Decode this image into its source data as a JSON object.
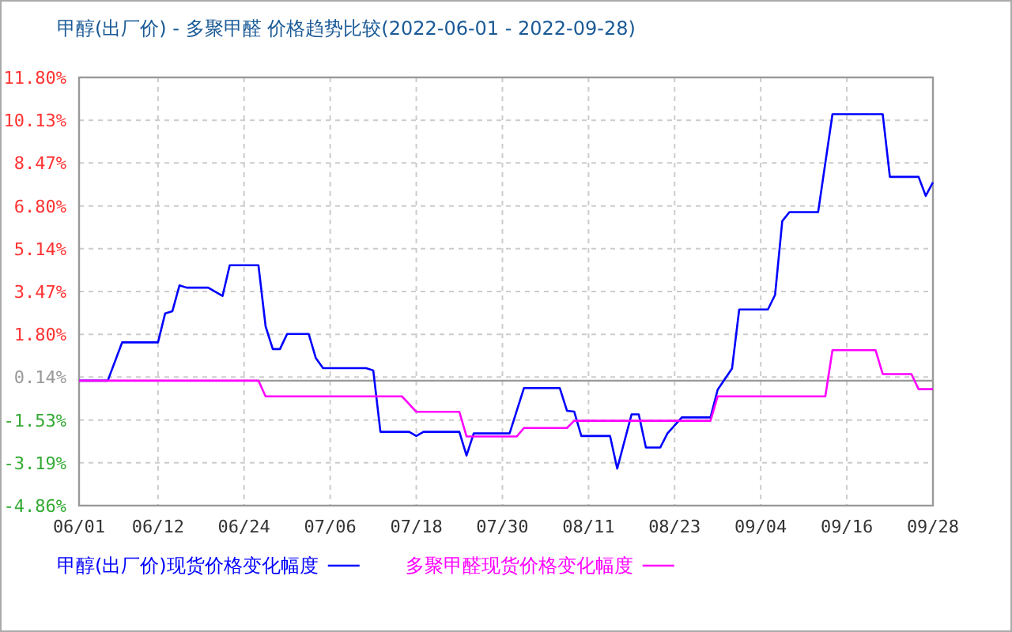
{
  "chart_data": {
    "type": "line",
    "title": "甲醇(出厂价) - 多聚甲醛 价格趋势比较(2022-06-01 - 2022-09-28)",
    "xlim": [
      "2022-06-01",
      "2022-09-28"
    ],
    "xticks": [
      {
        "value": "2022-06-01",
        "label": "06/01"
      },
      {
        "value": "2022-06-12",
        "label": "06/12"
      },
      {
        "value": "2022-06-24",
        "label": "06/24"
      },
      {
        "value": "2022-07-06",
        "label": "07/06"
      },
      {
        "value": "2022-07-18",
        "label": "07/18"
      },
      {
        "value": "2022-07-30",
        "label": "07/30"
      },
      {
        "value": "2022-08-11",
        "label": "08/11"
      },
      {
        "value": "2022-08-23",
        "label": "08/23"
      },
      {
        "value": "2022-09-04",
        "label": "09/04"
      },
      {
        "value": "2022-09-16",
        "label": "09/16"
      },
      {
        "value": "2022-09-28",
        "label": "09/28"
      }
    ],
    "ylim": [
      -4.86,
      11.8
    ],
    "yticks": [
      {
        "value": -4.86,
        "label": "-4.86%"
      },
      {
        "value": -3.19,
        "label": "-3.19%"
      },
      {
        "value": -1.53,
        "label": "-1.53%"
      },
      {
        "value": 0.14,
        "label": "0.14%"
      },
      {
        "value": 1.8,
        "label": "1.80%"
      },
      {
        "value": 3.47,
        "label": "3.47%"
      },
      {
        "value": 5.14,
        "label": "5.14%"
      },
      {
        "value": 6.8,
        "label": "6.80%"
      },
      {
        "value": 8.47,
        "label": "8.47%"
      },
      {
        "value": 10.13,
        "label": "10.13%"
      },
      {
        "value": 11.8,
        "label": "11.80%"
      }
    ],
    "grid": true,
    "legend": "bottom",
    "marker": "none",
    "line_style": "solid",
    "ref_lines": [
      {
        "axis": "y",
        "value": 0,
        "color": "#999999"
      }
    ],
    "series": [
      {
        "name": "甲醇(出厂价)现货价格变化幅度",
        "color": "#0000ff",
        "x": [
          "2022-06-01",
          "2022-06-05",
          "2022-06-07",
          "2022-06-12",
          "2022-06-13",
          "2022-06-14",
          "2022-06-15",
          "2022-06-16",
          "2022-06-19",
          "2022-06-21",
          "2022-06-22",
          "2022-06-26",
          "2022-06-27",
          "2022-06-28",
          "2022-06-29",
          "2022-06-30",
          "2022-07-03",
          "2022-07-04",
          "2022-07-05",
          "2022-07-11",
          "2022-07-12",
          "2022-07-13",
          "2022-07-17",
          "2022-07-18",
          "2022-07-19",
          "2022-07-24",
          "2022-07-25",
          "2022-07-26",
          "2022-07-31",
          "2022-08-01",
          "2022-08-02",
          "2022-08-07",
          "2022-08-08",
          "2022-08-09",
          "2022-08-10",
          "2022-08-14",
          "2022-08-15",
          "2022-08-17",
          "2022-08-18",
          "2022-08-19",
          "2022-08-21",
          "2022-08-22",
          "2022-08-24",
          "2022-08-28",
          "2022-08-29",
          "2022-08-31",
          "2022-09-01",
          "2022-09-05",
          "2022-09-06",
          "2022-09-07",
          "2022-09-08",
          "2022-09-12",
          "2022-09-14",
          "2022-09-21",
          "2022-09-22",
          "2022-09-26",
          "2022-09-27",
          "2022-09-28"
        ],
        "values": [
          0,
          0,
          1.49,
          1.49,
          2.62,
          2.7,
          3.71,
          3.62,
          3.62,
          3.3,
          4.49,
          4.49,
          2.11,
          1.23,
          1.23,
          1.82,
          1.82,
          0.88,
          0.49,
          0.49,
          0.4,
          -1.99,
          -1.99,
          -2.15,
          -1.99,
          -1.99,
          -2.91,
          -2.05,
          -2.05,
          -1.17,
          -0.29,
          -0.29,
          -1.17,
          -1.2,
          -2.15,
          -2.15,
          -3.42,
          -1.31,
          -1.31,
          -2.6,
          -2.6,
          -2.05,
          -1.43,
          -1.43,
          -0.35,
          0.47,
          2.77,
          2.77,
          3.34,
          6.21,
          6.56,
          6.56,
          10.37,
          10.37,
          7.93,
          7.93,
          7.19,
          7.72
        ]
      },
      {
        "name": "多聚甲醛现货价格变化幅度",
        "color": "#ff00ff",
        "x": [
          "2022-06-01",
          "2022-06-26",
          "2022-06-27",
          "2022-07-16",
          "2022-07-18",
          "2022-07-24",
          "2022-07-25",
          "2022-08-01",
          "2022-08-02",
          "2022-08-08",
          "2022-08-09",
          "2022-08-28",
          "2022-08-29",
          "2022-09-13",
          "2022-09-14",
          "2022-09-20",
          "2022-09-21",
          "2022-09-25",
          "2022-09-26",
          "2022-09-28"
        ],
        "values": [
          0,
          0,
          -0.61,
          -0.61,
          -1.21,
          -1.21,
          -2.17,
          -2.17,
          -1.84,
          -1.84,
          -1.56,
          -1.56,
          -0.61,
          -0.61,
          1.19,
          1.19,
          0.26,
          0.26,
          -0.33,
          -0.33
        ]
      }
    ]
  }
}
